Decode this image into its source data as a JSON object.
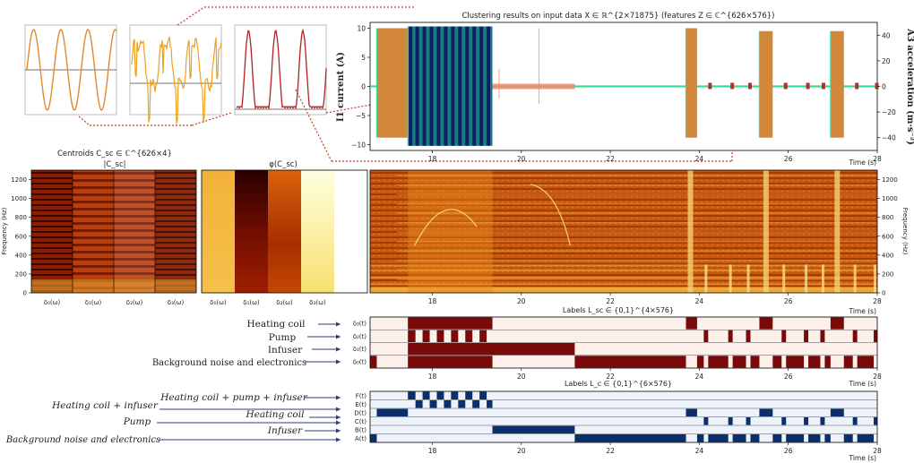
{
  "chart_data": {
    "type": "composite",
    "top_plot": {
      "title": "Clustering results on input data X ∈ ℝ^{2×71875} (features Z ∈ ℂ^{626×576})",
      "ylabel_left": "I1 current (A)",
      "ylabel_right": "A3 acceleration (m·s⁻²)",
      "xlabel": "Time (s)",
      "xlim": [
        16.6,
        28
      ],
      "ylim_left": [
        -11,
        11
      ],
      "ylim_right": [
        -50,
        50
      ],
      "x_ticks": [
        18,
        20,
        22,
        24,
        26,
        28
      ],
      "yl_ticks": [
        10,
        5,
        0,
        -5,
        -10
      ],
      "yr_ticks": [
        40,
        20,
        0,
        -20,
        -40
      ],
      "blocks": [
        {
          "x0": 16.75,
          "x1": 17.45,
          "ylo": -8.8,
          "yhi": 10.0,
          "color": "#d2873a"
        },
        {
          "x0": 17.45,
          "x1": 19.35,
          "ylo": -10.2,
          "yhi": 10.3,
          "color": "#1b7b7b"
        },
        {
          "x0": 23.7,
          "x1": 23.95,
          "ylo": -8.8,
          "yhi": 10.0,
          "color": "#d2873a"
        },
        {
          "x0": 25.35,
          "x1": 25.65,
          "ylo": -8.8,
          "yhi": 9.5,
          "color": "#d2873a"
        },
        {
          "x0": 26.95,
          "x1": 27.25,
          "ylo": -8.8,
          "yhi": 9.5,
          "color": "#d2873a"
        }
      ],
      "navy_stripes": [
        17.47,
        17.62,
        17.78,
        17.94,
        18.1,
        18.26,
        18.42,
        18.58,
        18.74,
        18.9,
        19.06,
        19.22
      ],
      "small_markers": [
        24.2,
        24.7,
        25.1,
        25.9,
        26.4,
        26.75,
        27.5,
        27.95
      ]
    },
    "insets": [
      {
        "name": "clean sine",
        "color": "#e08a30"
      },
      {
        "name": "noisy",
        "color": "#f0a020"
      },
      {
        "name": "peaky",
        "color": "#b22222"
      }
    ],
    "centroids": {
      "title": "Centroids C_sc ∈ ℂ^{626×4}",
      "subtitle": "|C_sc|",
      "phase_title": "φ(C_sc)",
      "ylabel": "Frequency (Hz)",
      "y_ticks": [
        1200,
        1000,
        800,
        600,
        400,
        200,
        0
      ],
      "x_labels": [
        "δ₀(ω)",
        "δ₁(ω)",
        "δ₂(ω)",
        "δ₃(ω)"
      ],
      "phase_levels": [
        0.55,
        0.05,
        0.35,
        0.85
      ]
    },
    "spectrogram": {
      "ylabel": "Frequency (Hz)",
      "xlabel": "Time (s)",
      "y_ticks": [
        1200,
        1000,
        800,
        600,
        400,
        200,
        0
      ],
      "x_ticks": [
        18,
        20,
        22,
        24,
        26,
        28
      ]
    },
    "labels_sc": {
      "title": "Labels L_sc ∈ {0,1}^{4×576}",
      "xlabel": "Time (s)",
      "rows": [
        "δ₃(t)",
        "δ₂(t)",
        "δ₁(t)",
        "δ₀(t)"
      ],
      "left_labels": [
        "Heating coil",
        "Pump",
        "Infuser",
        "Background noise and electronics"
      ],
      "active": [
        [
          [
            17.45,
            19.35
          ],
          [
            23.7,
            23.95
          ],
          [
            25.35,
            25.65
          ],
          [
            26.95,
            27.25
          ]
        ],
        [
          [
            17.45,
            17.62
          ],
          [
            17.78,
            17.94
          ],
          [
            18.1,
            18.26
          ],
          [
            18.42,
            18.58
          ],
          [
            18.74,
            18.9
          ],
          [
            19.06,
            19.22
          ],
          [
            24.1,
            24.2
          ],
          [
            24.65,
            24.75
          ],
          [
            25.05,
            25.15
          ],
          [
            25.85,
            25.95
          ],
          [
            26.35,
            26.45
          ],
          [
            26.72,
            26.82
          ],
          [
            27.45,
            27.55
          ],
          [
            27.92,
            28.0
          ]
        ],
        [
          [
            17.45,
            21.2
          ]
        ],
        [
          [
            16.6,
            16.75
          ],
          [
            17.45,
            19.35
          ],
          [
            21.2,
            23.7
          ],
          [
            23.95,
            24.1
          ],
          [
            24.2,
            24.65
          ],
          [
            24.75,
            25.05
          ],
          [
            25.15,
            25.35
          ],
          [
            25.65,
            25.85
          ],
          [
            25.95,
            26.35
          ],
          [
            26.45,
            26.72
          ],
          [
            26.82,
            26.95
          ],
          [
            27.25,
            27.45
          ],
          [
            27.55,
            27.92
          ]
        ]
      ]
    },
    "labels_c": {
      "title": "Labels L_c ∈ {0,1}^{6×576}",
      "xlabel": "Time (s)",
      "rows": [
        "F(t)",
        "E(t)",
        "D(t)",
        "C(t)",
        "B(t)",
        "A(t)"
      ],
      "left_labels": [
        "Heating coil + pump + infuser",
        "Heating coil + infuser",
        "Heating coil",
        "Pump",
        "Infuser",
        "Background noise and electronics"
      ],
      "active": [
        [
          [
            17.45,
            17.62
          ],
          [
            17.78,
            17.94
          ],
          [
            18.1,
            18.26
          ],
          [
            18.42,
            18.58
          ],
          [
            18.74,
            18.9
          ],
          [
            19.06,
            19.22
          ]
        ],
        [
          [
            17.62,
            17.78
          ],
          [
            17.94,
            18.1
          ],
          [
            18.26,
            18.42
          ],
          [
            18.58,
            18.74
          ],
          [
            18.9,
            19.06
          ],
          [
            19.22,
            19.35
          ]
        ],
        [
          [
            16.75,
            17.45
          ],
          [
            23.7,
            23.95
          ],
          [
            25.35,
            25.65
          ],
          [
            26.95,
            27.25
          ]
        ],
        [
          [
            24.1,
            24.2
          ],
          [
            24.65,
            24.75
          ],
          [
            25.05,
            25.15
          ],
          [
            25.85,
            25.95
          ],
          [
            26.35,
            26.45
          ],
          [
            26.72,
            26.82
          ],
          [
            27.45,
            27.55
          ],
          [
            27.92,
            28.0
          ]
        ],
        [
          [
            19.35,
            21.2
          ]
        ],
        [
          [
            16.6,
            16.75
          ],
          [
            21.2,
            23.7
          ],
          [
            23.95,
            24.1
          ],
          [
            24.2,
            24.65
          ],
          [
            24.75,
            25.05
          ],
          [
            25.15,
            25.35
          ],
          [
            25.65,
            25.85
          ],
          [
            25.95,
            26.35
          ],
          [
            26.45,
            26.72
          ],
          [
            26.82,
            26.95
          ],
          [
            27.25,
            27.45
          ],
          [
            27.55,
            27.92
          ]
        ]
      ]
    },
    "colors": {
      "red_label": "#7a0a0a",
      "blue_label": "#0b2f6b",
      "green_line": "#3bdc9a",
      "salmon": "#f08a6a"
    }
  }
}
